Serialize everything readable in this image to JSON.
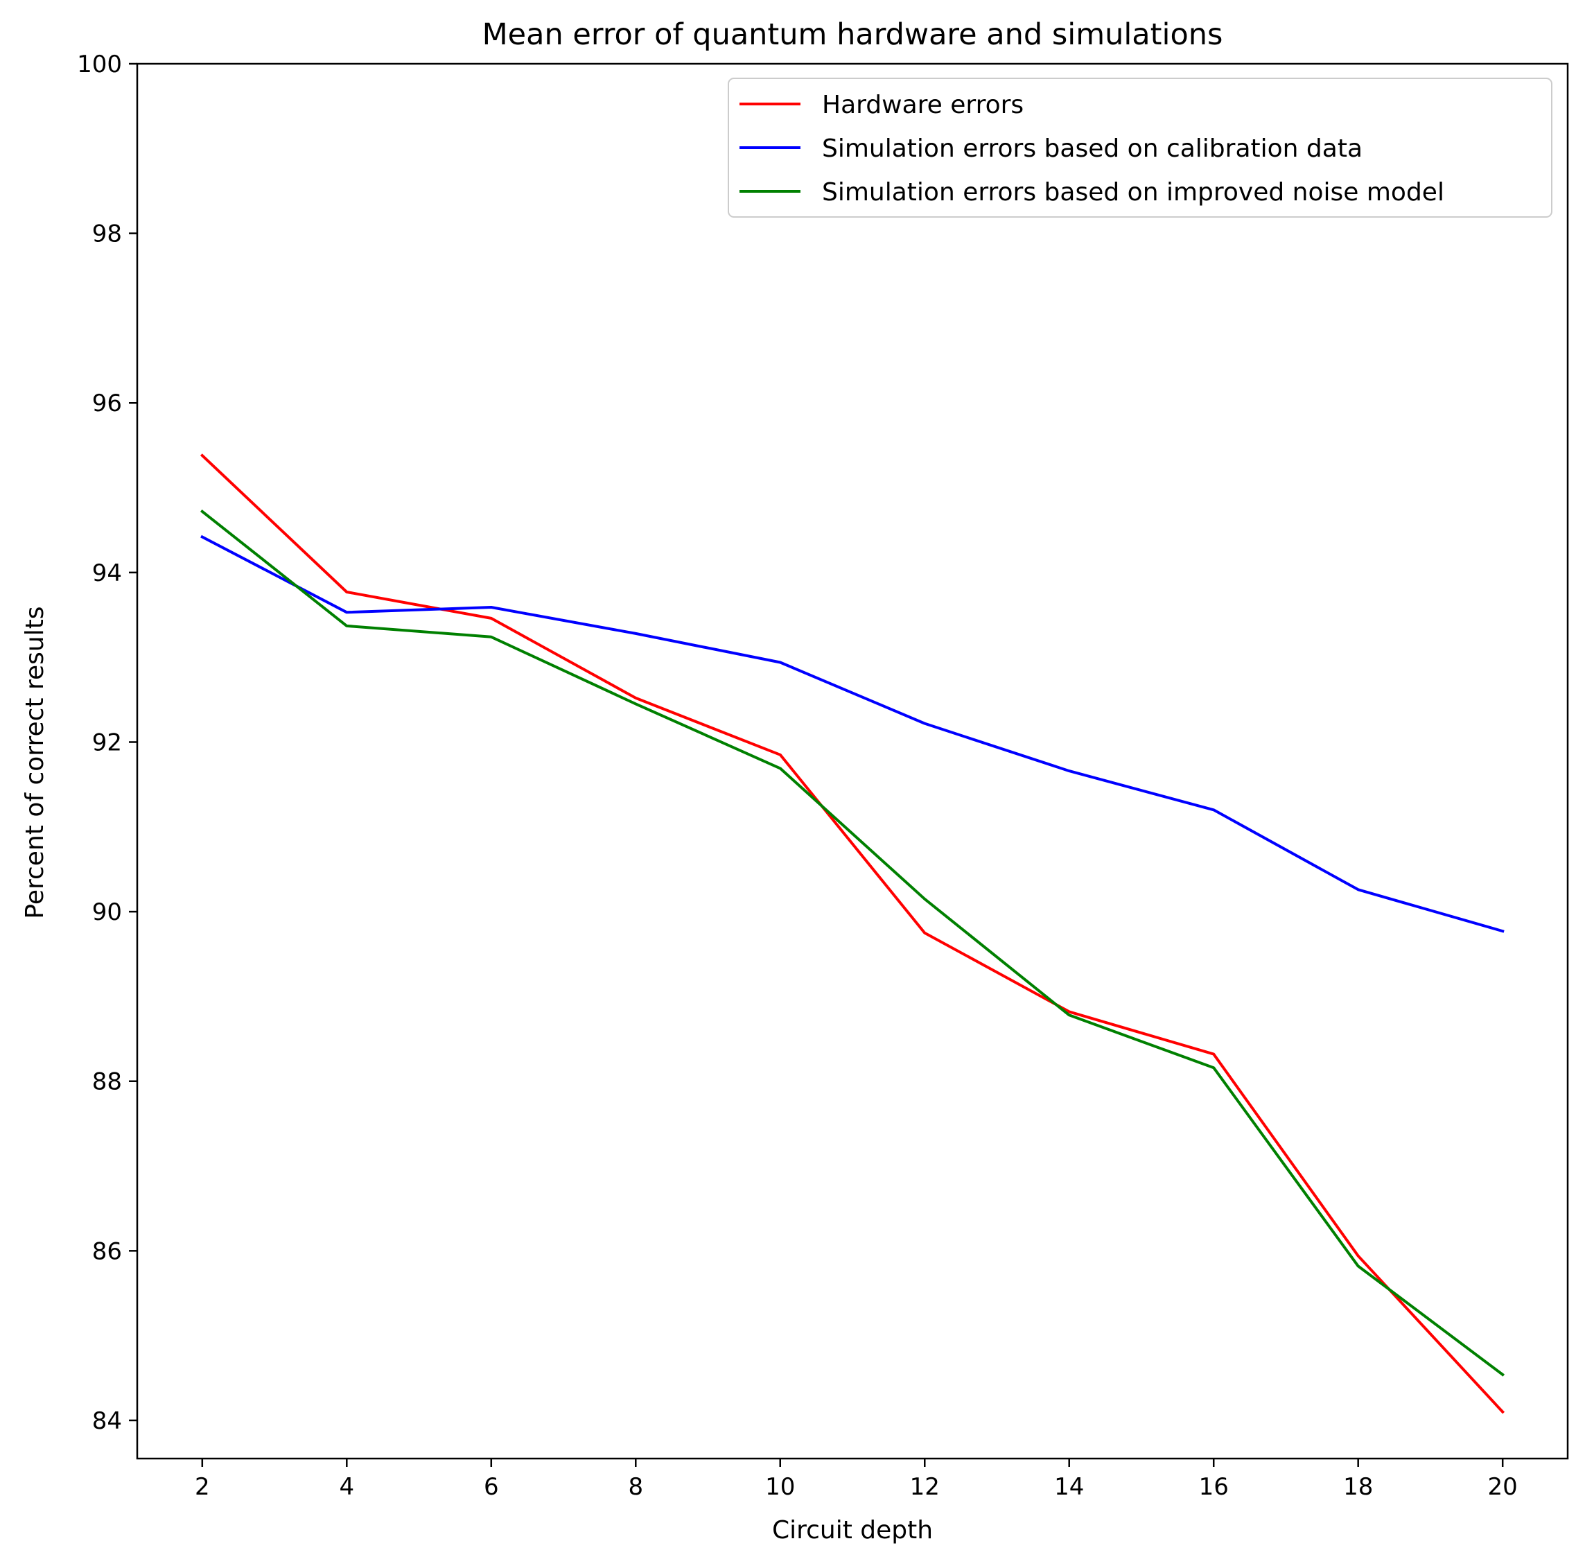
{
  "chart_data": {
    "type": "line",
    "title": "Mean error of quantum hardware and simulations",
    "xlabel": "Circuit depth",
    "ylabel": "Percent of correct results",
    "x": [
      2,
      4,
      6,
      8,
      10,
      12,
      14,
      16,
      18,
      20
    ],
    "xticks": [
      "2",
      "4",
      "6",
      "8",
      "10",
      "12",
      "14",
      "16",
      "18",
      "20"
    ],
    "yticks": [
      "84",
      "86",
      "88",
      "90",
      "92",
      "94",
      "96",
      "98",
      "100"
    ],
    "xlim": [
      1.1,
      20.9
    ],
    "ylim": [
      83.55,
      100
    ],
    "grid": false,
    "legend_position": "top-right",
    "series": [
      {
        "name": "Hardware errors",
        "color": "#ff0000",
        "values": [
          95.38,
          93.77,
          93.46,
          92.52,
          91.85,
          89.75,
          88.82,
          88.32,
          85.94,
          84.1
        ]
      },
      {
        "name": "Simulation errors based on calibration data",
        "color": "#0000ff",
        "values": [
          94.42,
          93.53,
          93.59,
          93.28,
          92.94,
          92.22,
          91.66,
          91.2,
          90.26,
          89.77
        ]
      },
      {
        "name": "Simulation errors based on improved noise model",
        "color": "#008000",
        "values": [
          94.72,
          93.37,
          93.24,
          92.45,
          91.69,
          90.15,
          88.78,
          88.16,
          85.82,
          84.54
        ]
      }
    ]
  }
}
